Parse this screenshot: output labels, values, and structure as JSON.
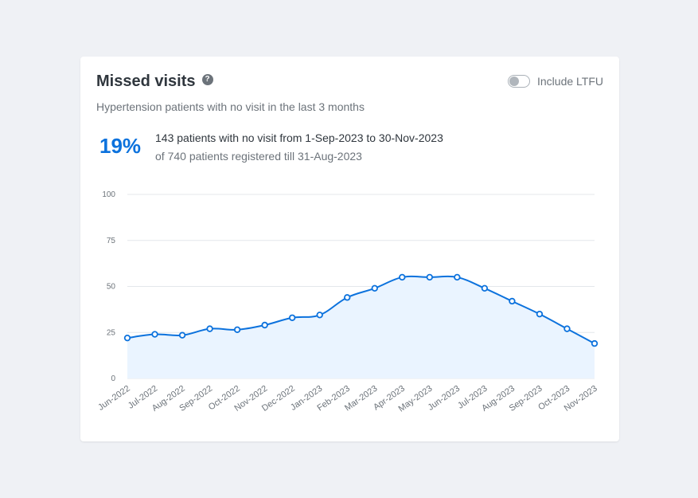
{
  "card": {
    "title": "Missed visits",
    "help_icon": "?",
    "toggle_label": "Include LTFU",
    "toggle_on": false,
    "subtitle": "Hypertension patients with no visit in the last 3 months",
    "percent": "19%",
    "summary": "143 patients with no visit from 1-Sep-2023 to 30-Nov-2023",
    "summary_sub": "of 740 patients registered till 31-Aug-2023"
  },
  "colors": {
    "accent": "#0c72dd",
    "fill": "#eaf4ff",
    "grid": "#e4e7eb"
  },
  "chart_data": {
    "type": "area",
    "categories": [
      "Jun-2022",
      "Jul-2022",
      "Aug-2022",
      "Sep-2022",
      "Oct-2022",
      "Nov-2022",
      "Dec-2022",
      "Jan-2023",
      "Feb-2023",
      "Mar-2023",
      "Apr-2023",
      "May-2023",
      "Jun-2023",
      "Jul-2023",
      "Aug-2023",
      "Sep-2023",
      "Oct-2023",
      "Nov-2023"
    ],
    "values": [
      22,
      24,
      23.5,
      27,
      26.5,
      29,
      33,
      34.5,
      44,
      49,
      55,
      55,
      55,
      49,
      42,
      35,
      27,
      19
    ],
    "ylim": [
      0,
      100
    ],
    "yticks": [
      0,
      25,
      50,
      75,
      100
    ],
    "grid": true,
    "markers": true
  }
}
